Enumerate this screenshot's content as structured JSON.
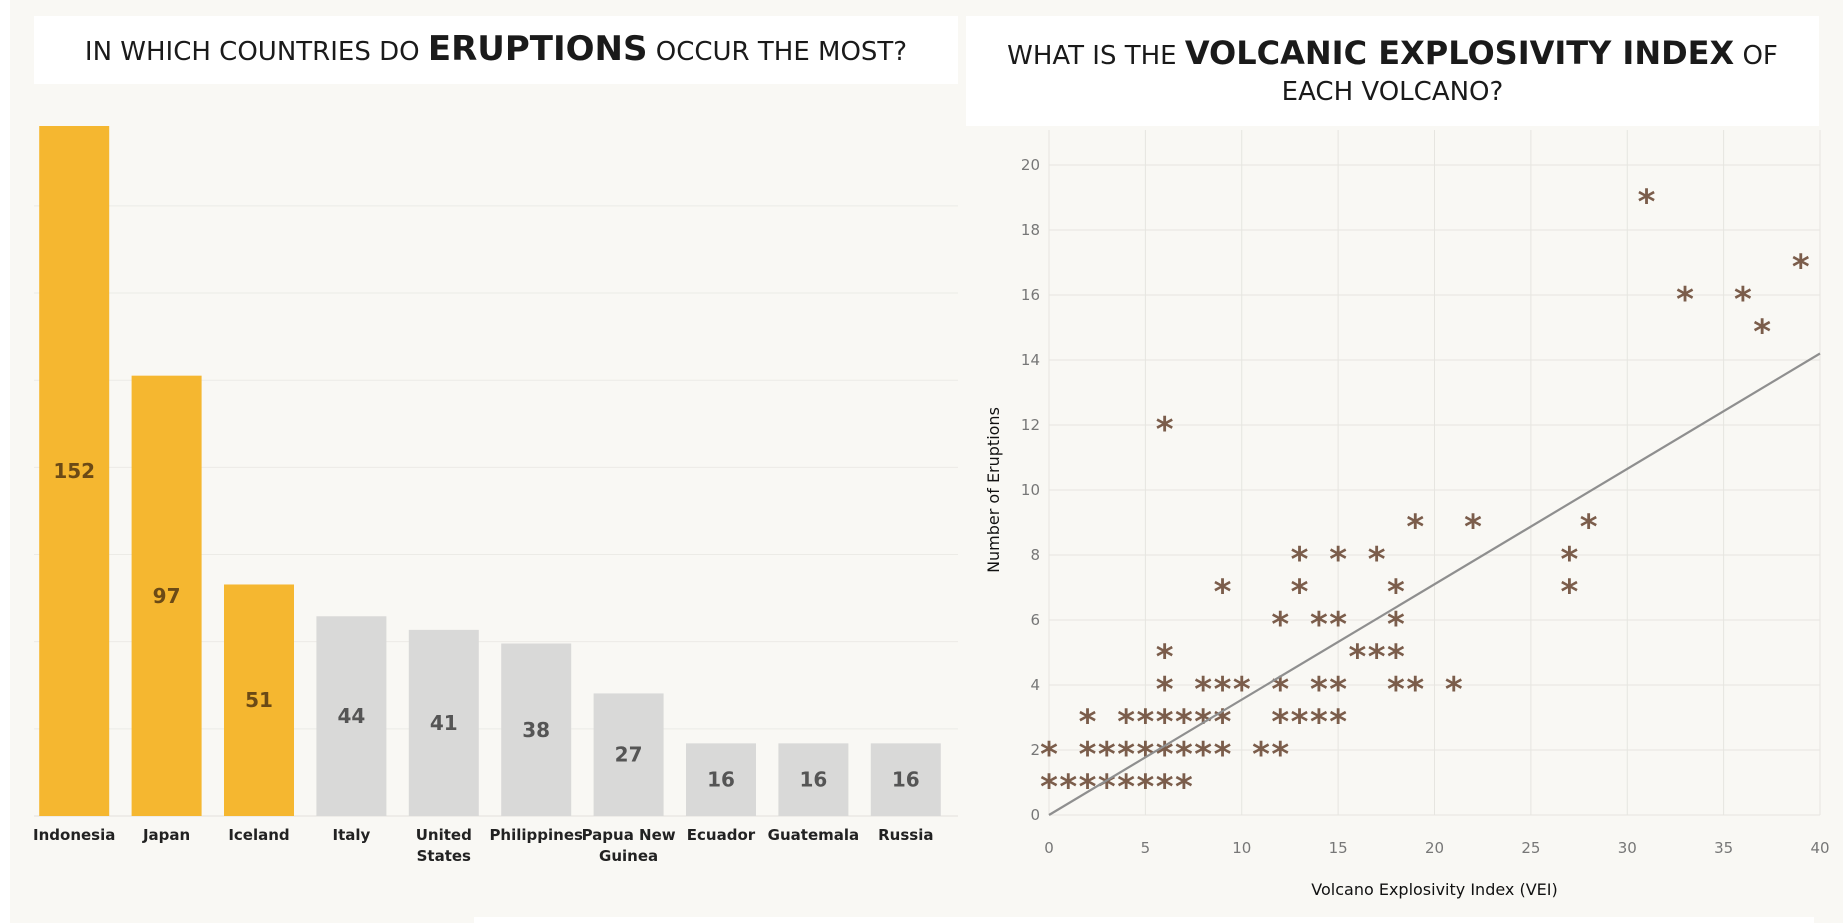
{
  "titles": {
    "left": {
      "pre": "IN WHICH COUNTRIES DO ",
      "bold": "ERUPTIONS",
      "post": " OCCUR THE MOST?"
    },
    "right": {
      "pre": "WHAT IS THE ",
      "bold": "VOLCANIC EXPLOSIVITY INDEX",
      "post": " OF EACH VOLCANO?"
    }
  },
  "colors": {
    "highlight": "#f5b730",
    "normal": "#d9d9d8",
    "highlight_label": "#6b4a16",
    "normal_label": "#555555",
    "marker": "#7b5d4b",
    "trend": "#8f8f8f",
    "panel_bg": "#f9f8f4"
  },
  "chart_data": [
    {
      "type": "bar",
      "categories": [
        "Indonesia",
        "Japan",
        "Iceland",
        "Italy",
        "United States",
        "Philippines",
        "Papua New Guinea",
        "Ecuador",
        "Guatemala",
        "Russia"
      ],
      "values": [
        152,
        97,
        51,
        44,
        41,
        38,
        27,
        16,
        16,
        16
      ],
      "highlighted": [
        true,
        true,
        true,
        false,
        false,
        false,
        false,
        false,
        false,
        false
      ],
      "ylim": [
        0,
        160
      ],
      "grid": true
    },
    {
      "type": "scatter",
      "xlabel": "Volcano Explosivity Index (VEI)",
      "ylabel": "Number of Eruptions",
      "xlim": [
        0,
        40
      ],
      "ylim": [
        0,
        20
      ],
      "xticks": [
        0,
        5,
        10,
        15,
        20,
        25,
        30,
        35,
        40
      ],
      "yticks": [
        0,
        2,
        4,
        6,
        8,
        10,
        12,
        14,
        16,
        18,
        20
      ],
      "grid": true,
      "marker": "asterisk",
      "trendline": {
        "x": [
          0,
          40
        ],
        "y": [
          0,
          14.2
        ]
      },
      "points": [
        [
          0,
          1
        ],
        [
          1,
          1
        ],
        [
          2,
          1
        ],
        [
          3,
          1
        ],
        [
          4,
          1
        ],
        [
          5,
          1
        ],
        [
          6,
          1
        ],
        [
          7,
          1
        ],
        [
          0,
          2
        ],
        [
          2,
          2
        ],
        [
          3,
          2
        ],
        [
          4,
          2
        ],
        [
          5,
          2
        ],
        [
          6,
          2
        ],
        [
          7,
          2
        ],
        [
          8,
          2
        ],
        [
          9,
          2
        ],
        [
          11,
          2
        ],
        [
          12,
          2
        ],
        [
          2,
          3
        ],
        [
          4,
          3
        ],
        [
          5,
          3
        ],
        [
          6,
          3
        ],
        [
          7,
          3
        ],
        [
          8,
          3
        ],
        [
          9,
          3
        ],
        [
          12,
          3
        ],
        [
          13,
          3
        ],
        [
          14,
          3
        ],
        [
          15,
          3
        ],
        [
          6,
          4
        ],
        [
          8,
          4
        ],
        [
          9,
          4
        ],
        [
          10,
          4
        ],
        [
          12,
          4
        ],
        [
          14,
          4
        ],
        [
          15,
          4
        ],
        [
          18,
          4
        ],
        [
          19,
          4
        ],
        [
          21,
          4
        ],
        [
          6,
          5
        ],
        [
          16,
          5
        ],
        [
          17,
          5
        ],
        [
          18,
          5
        ],
        [
          12,
          6
        ],
        [
          14,
          6
        ],
        [
          15,
          6
        ],
        [
          18,
          6
        ],
        [
          9,
          7
        ],
        [
          13,
          7
        ],
        [
          18,
          7
        ],
        [
          27,
          7
        ],
        [
          13,
          8
        ],
        [
          15,
          8
        ],
        [
          17,
          8
        ],
        [
          27,
          8
        ],
        [
          19,
          9
        ],
        [
          22,
          9
        ],
        [
          28,
          9
        ],
        [
          6,
          12
        ],
        [
          31,
          19
        ],
        [
          33,
          16
        ],
        [
          36,
          16
        ],
        [
          37,
          15
        ],
        [
          39,
          17
        ]
      ]
    }
  ]
}
